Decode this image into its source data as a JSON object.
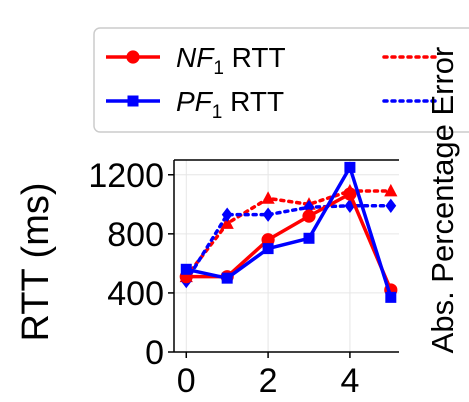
{
  "chart_data": {
    "type": "line",
    "ylabel": "RTT (ms)",
    "ylabel_right": "Abs. Percentage Error",
    "xlabel": "",
    "xlim": [
      -0.3,
      5.2
    ],
    "ylim": [
      0,
      1300
    ],
    "xticks": [
      0,
      2,
      4
    ],
    "yticks": [
      0,
      400,
      800,
      1200
    ],
    "grid": true,
    "legend_position": "top",
    "series": [
      {
        "name": "NF1 RTT",
        "name_main": "NF",
        "name_sub": "1",
        "name_tail": " RTT",
        "color": "#ff0000",
        "style": "solid",
        "marker": "circle",
        "x": [
          0,
          1,
          2,
          3,
          4,
          5
        ],
        "values": [
          510,
          510,
          760,
          920,
          1070,
          420
        ]
      },
      {
        "name": "PF1 RTT",
        "name_main": "PF",
        "name_sub": "1",
        "name_tail": " RTT",
        "color": "#0000ff",
        "style": "solid",
        "marker": "square",
        "x": [
          0,
          1,
          2,
          3,
          4,
          5
        ],
        "values": [
          560,
          500,
          700,
          770,
          1250,
          370
        ]
      },
      {
        "name": "Error",
        "legend_visible": false,
        "color": "#ff0000",
        "style": "dotted",
        "marker": "triangle",
        "x": [
          0,
          1,
          2,
          3,
          4,
          5
        ],
        "values": [
          510,
          870,
          1040,
          1000,
          1090,
          1090
        ]
      },
      {
        "name": "",
        "legend_visible": false,
        "color": "#0000ff",
        "style": "dotted",
        "marker": "diamond",
        "x": [
          0,
          1,
          2,
          3,
          4,
          5
        ],
        "values": [
          480,
          930,
          930,
          980,
          990,
          990
        ]
      }
    ]
  },
  "legend": {
    "error_label": "Error"
  }
}
